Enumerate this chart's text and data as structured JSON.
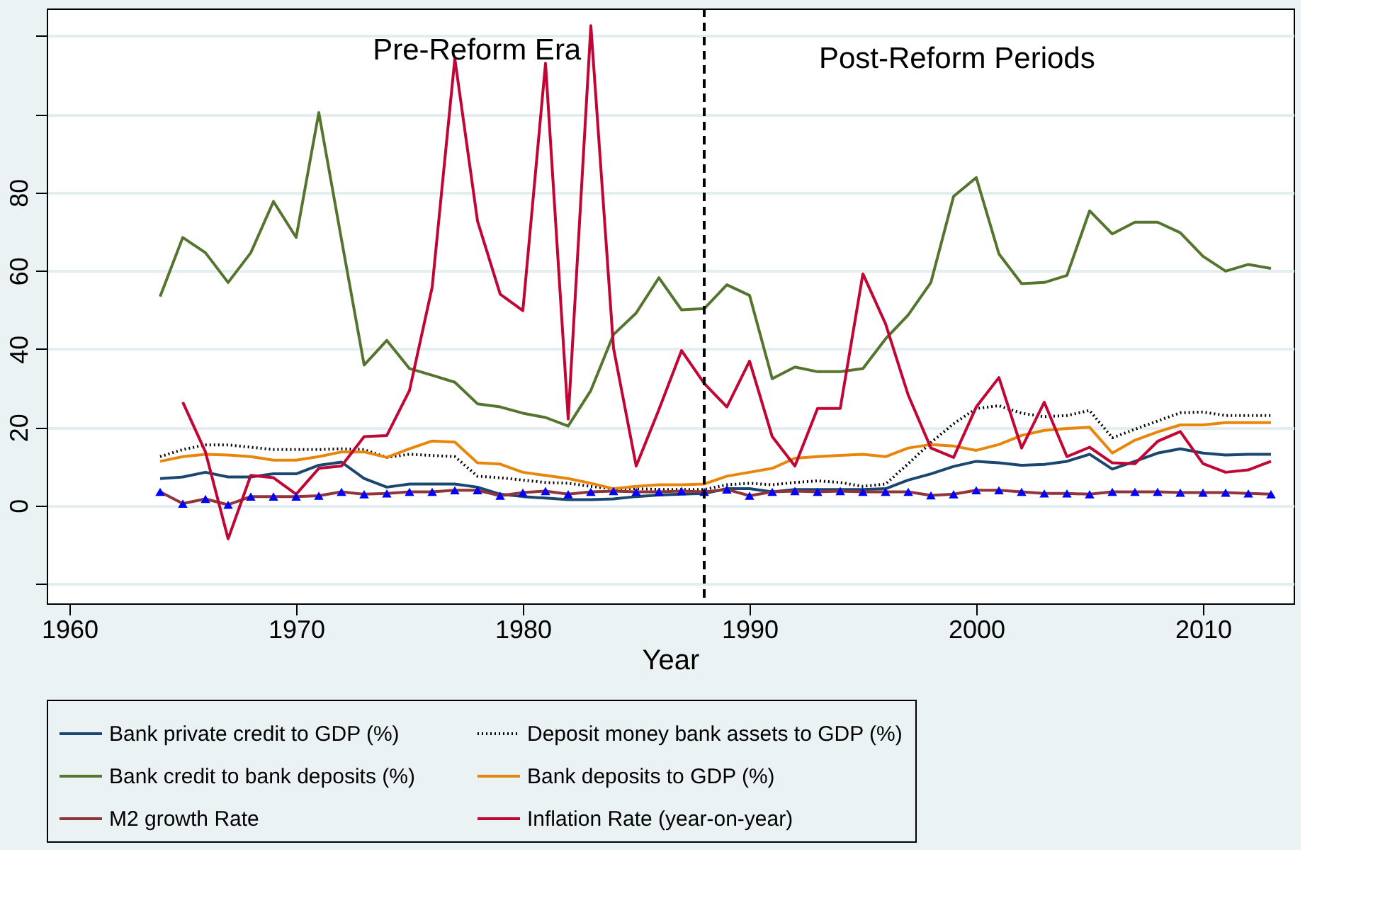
{
  "chart_data": {
    "type": "line",
    "xlabel": "Year",
    "annotations": [
      "Pre-Reform Era",
      "Post-Reform Periods"
    ],
    "x": [
      1964,
      1965,
      1966,
      1967,
      1968,
      1969,
      1970,
      1971,
      1972,
      1973,
      1974,
      1975,
      1976,
      1977,
      1978,
      1979,
      1980,
      1981,
      1982,
      1983,
      1984,
      1985,
      1986,
      1987,
      1988,
      1989,
      1990,
      1991,
      1992,
      1993,
      1994,
      1995,
      1996,
      1997,
      1998,
      1999,
      2000,
      2001,
      2002,
      2003,
      2004,
      2005,
      2006,
      2007,
      2008,
      2009,
      2010,
      2011,
      2012,
      2013
    ],
    "series": [
      {
        "name": "Bank private credit to GDP (%)",
        "color": "#1a476f",
        "line_style": "solid",
        "values": [
          6.9,
          7.3,
          8.5,
          7.3,
          7.3,
          8.1,
          8.1,
          10.3,
          11.1,
          6.9,
          4.7,
          5.5,
          5.5,
          5.5,
          4.7,
          2.9,
          2.3,
          1.9,
          1.5,
          1.5,
          1.7,
          2.3,
          2.7,
          2.9,
          3.1,
          4.3,
          4.3,
          3.5,
          4.1,
          4.1,
          4.1,
          4.1,
          4.3,
          6.5,
          8.1,
          10,
          11.3,
          10.9,
          10.3,
          10.5,
          11.3,
          13.1,
          9.3,
          11.3,
          13.4,
          14.5,
          13.4,
          12.9,
          13.1,
          13.1
        ]
      },
      {
        "name": "Deposit money bank assets to GDP (%)",
        "color": "#000000",
        "line_style": "dotted",
        "values": [
          12.5,
          14.3,
          15.5,
          15.5,
          14.9,
          14.3,
          14.3,
          14.3,
          14.5,
          14.3,
          12.3,
          13.1,
          12.8,
          12.5,
          7.5,
          7.1,
          6.5,
          5.9,
          5.7,
          4.9,
          4.3,
          4.3,
          4.1,
          4.1,
          4.1,
          5.3,
          5.7,
          5.3,
          5.9,
          6.3,
          5.9,
          4.9,
          5.5,
          10.7,
          16.1,
          20.9,
          24.8,
          25.5,
          23.6,
          22.7,
          23,
          24.3,
          17.3,
          19.5,
          21.6,
          23.7,
          23.9,
          23,
          23,
          23
        ]
      },
      {
        "name": "Bank credit to bank deposits (%)",
        "color": "#55752f",
        "line_style": "solid",
        "values": [
          53.4,
          68.5,
          64.6,
          57,
          64.6,
          77.7,
          68.5,
          100.4,
          68,
          35.9,
          42.2,
          35,
          33.3,
          31.5,
          26,
          25.2,
          23.6,
          22.5,
          20.3,
          29.4,
          43.7,
          49.2,
          58.2,
          50,
          50.3,
          56.4,
          53.7,
          32.4,
          35.4,
          34.2,
          34.2,
          35,
          42.6,
          48.7,
          57,
          79,
          83.8,
          64.3,
          56.7,
          57,
          58.8,
          75.3,
          69.4,
          72.4,
          72.4,
          69.7,
          63.7,
          59.9,
          61.6,
          60.6
        ]
      },
      {
        "name": "Bank deposits to GDP (%)",
        "color": "#e8860c",
        "line_style": "solid",
        "values": [
          11.3,
          12.5,
          13.1,
          12.9,
          12.5,
          11.6,
          11.6,
          12.5,
          13.7,
          13.7,
          12.3,
          14.5,
          16.5,
          16.2,
          10.9,
          10.6,
          8.5,
          7.7,
          6.9,
          5.7,
          4.3,
          4.9,
          5.3,
          5.3,
          5.5,
          7.5,
          8.5,
          9.5,
          12.1,
          12.5,
          12.8,
          13.1,
          12.5,
          14.7,
          15.6,
          15.2,
          14.1,
          15.6,
          17.9,
          19.2,
          19.7,
          20,
          13.4,
          16.7,
          18.8,
          20.6,
          20.6,
          21.2,
          21.2,
          21.2
        ]
      },
      {
        "name": "M2 growth Rate",
        "color": "#90353b",
        "line_style": "solid",
        "marker": "triangle",
        "colors": [
          "#0000ff",
          "#0000ff",
          "#0000ff",
          "#0000ff",
          "#0000ff",
          "#0000ff",
          "#0000ff",
          "#0000ff",
          "#0000ff",
          "#0000ff",
          "#0000ff",
          "#0000ff",
          "#0000ff",
          "#0000ff",
          "#0000ff",
          "#0000ff",
          "#0000ff",
          "#0000ff",
          "#0000ff",
          "#0000ff",
          "#0000ff",
          "#0000ff",
          "#0000ff",
          "#0000ff",
          "#0000ff",
          "#0000ff",
          "#0000ff",
          "#0000ff",
          "#0000ff",
          "#0000ff",
          "#0000ff",
          "#0000ff",
          "#0000ff",
          "#0000ff",
          "#0000ff",
          "#0000ff",
          "#0000ff",
          "#0000ff",
          "#0000ff",
          "#0000ff",
          "#0000ff",
          "#0000ff",
          "#0000ff",
          "#0000ff",
          "#0000ff",
          "#0000ff",
          "#0000ff",
          "#0000ff",
          "#0000ff",
          "#0000ff"
        ],
        "values": [
          3.5,
          0.5,
          1.7,
          0.2,
          2.3,
          2.3,
          2.3,
          2.5,
          3.5,
          2.9,
          3.1,
          3.5,
          3.5,
          3.9,
          3.9,
          2.5,
          3.3,
          3.7,
          2.9,
          3.5,
          3.7,
          3.5,
          3.5,
          3.7,
          3.5,
          4.1,
          2.5,
          3.5,
          3.7,
          3.5,
          3.7,
          3.5,
          3.5,
          3.5,
          2.6,
          2.9,
          3.9,
          3.9,
          3.5,
          3.1,
          3.1,
          2.9,
          3.5,
          3.5,
          3.5,
          3.3,
          3.3,
          3.3,
          3.1,
          2.9
        ]
      },
      {
        "name": "Inflation Rate (year-on-year)",
        "color": "#c10534",
        "line_style": "solid",
        "values": [
          null,
          26.4,
          13.7,
          -8.5,
          7.7,
          7.1,
          2.9,
          9.5,
          10.1,
          17.6,
          17.9,
          29.4,
          55.8,
          114.2,
          72.7,
          54,
          49.8,
          113,
          22.1,
          122.6,
          40.2,
          10.1,
          24.5,
          39.6,
          31.2,
          25.2,
          36.9,
          17.6,
          10.1,
          24.8,
          24.8,
          59.2,
          46.4,
          28.2,
          14.7,
          12.3,
          25.2,
          32.7,
          14.7,
          26.4,
          12.5,
          14.9,
          10.9,
          10.7,
          16.4,
          18.9,
          10.7,
          8.5,
          9.1,
          11.3
        ]
      }
    ],
    "xlim": [
      1959,
      2014
    ],
    "xticks": [
      1960,
      1970,
      1980,
      1990,
      2000,
      2010
    ],
    "ylim": [
      -25,
      127
    ],
    "yticks": [
      {
        "value": -20,
        "label": null
      },
      0,
      20,
      40,
      60,
      80,
      {
        "value": 100,
        "label": null
      },
      {
        "value": 120,
        "label": null
      }
    ],
    "ref_lines": [
      {
        "axis": "x",
        "value": 1988,
        "color": "#000000",
        "line_style": "dashed"
      }
    ],
    "grid": "y",
    "legend": "bottom"
  }
}
